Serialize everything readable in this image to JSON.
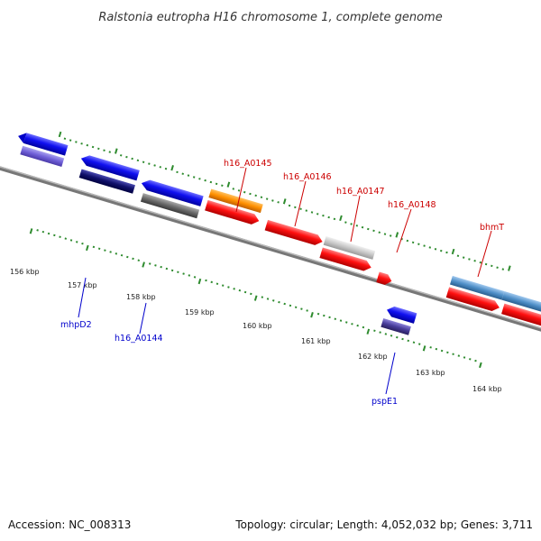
{
  "title": "Ralstonia eutropha H16 chromosome 1, complete genome",
  "footer": {
    "accession": "Accession: NC_008313",
    "summary": "Topology: circular; Length: 4,052,032 bp; Genes: 3,711"
  },
  "colors": {
    "backbone": "#808080",
    "tick": "#2e8b2e",
    "label_red": "#cc0000",
    "label_blue": "#0000cc",
    "leader_red": "#cc0000",
    "leader_blue": "#0000cc"
  },
  "scale": {
    "ticks": [
      {
        "label": "156 kbp"
      },
      {
        "label": "157 kbp"
      },
      {
        "label": "158 kbp"
      },
      {
        "label": "159 kbp"
      },
      {
        "label": "160 kbp"
      },
      {
        "label": "161 kbp"
      },
      {
        "label": "162 kbp"
      },
      {
        "label": "163 kbp"
      },
      {
        "label": "164 kbp"
      }
    ]
  },
  "gene_labels": [
    {
      "id": "h16_A0145",
      "text": "h16_A0145",
      "color": "red"
    },
    {
      "id": "h16_A0146",
      "text": "h16_A0146",
      "color": "red"
    },
    {
      "id": "h16_A0147",
      "text": "h16_A0147",
      "color": "red"
    },
    {
      "id": "h16_A0148",
      "text": "h16_A0148",
      "color": "red"
    },
    {
      "id": "bhmT",
      "text": "bhmT",
      "color": "red"
    },
    {
      "id": "mhpD2",
      "text": "mhpD2",
      "color": "blue"
    },
    {
      "id": "h16_A0144",
      "text": "h16_A0144",
      "color": "blue"
    },
    {
      "id": "pspE1",
      "text": "pspE1",
      "color": "blue"
    }
  ]
}
